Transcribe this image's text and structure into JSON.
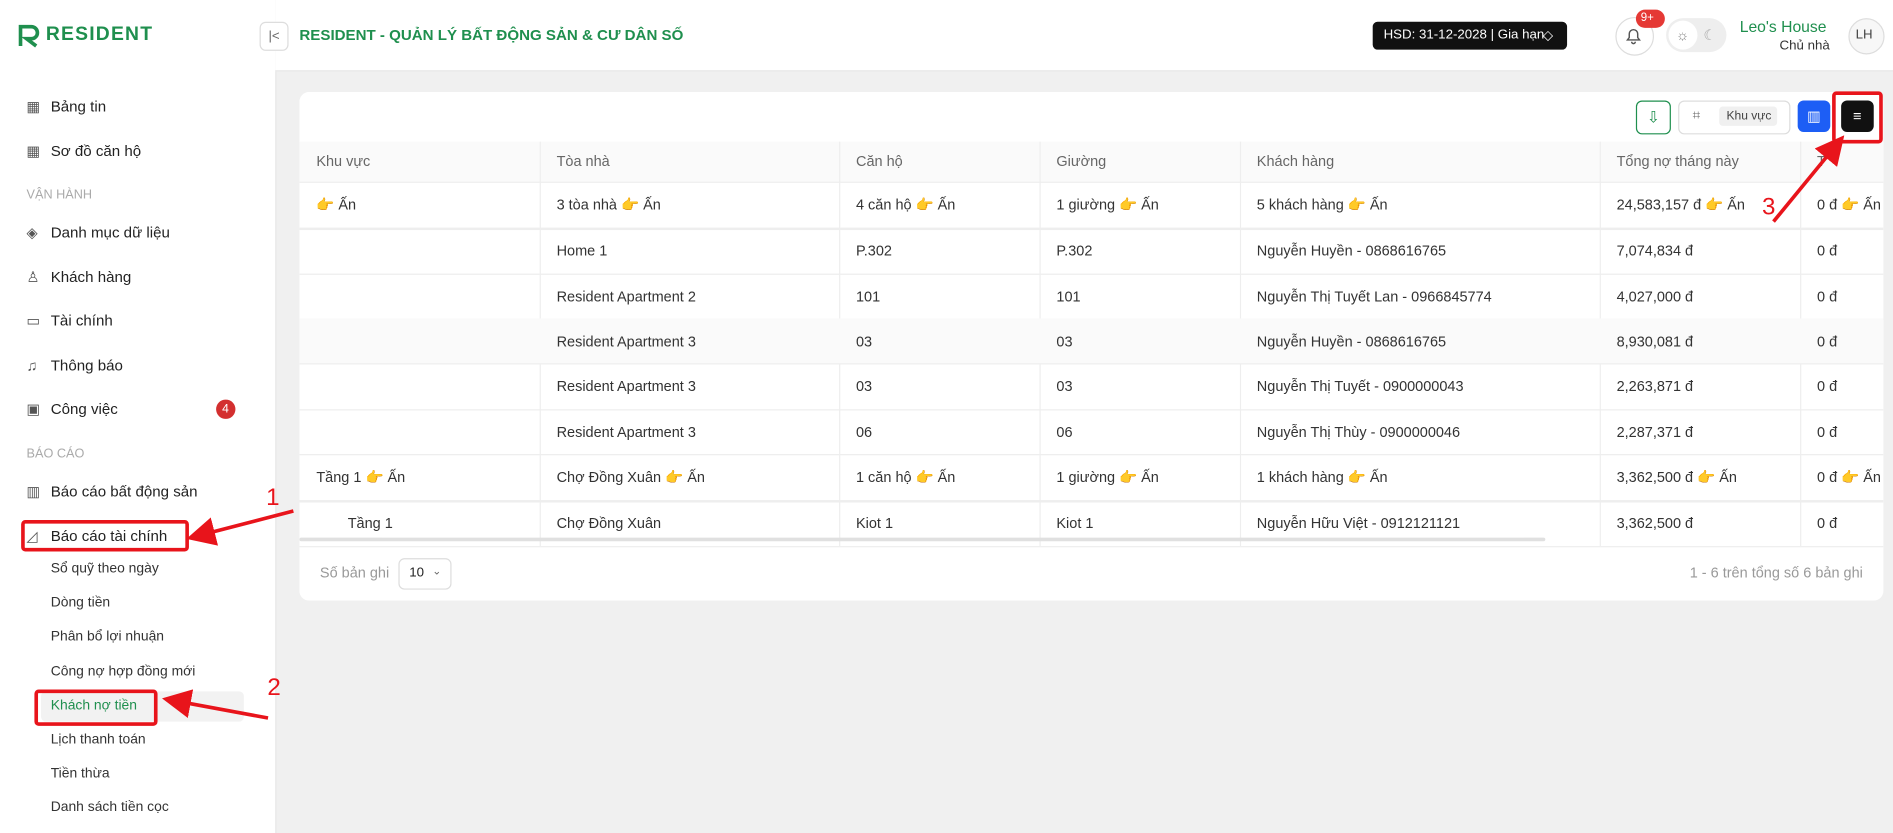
{
  "header": {
    "logo": "RESIDENT",
    "title": "RESIDENT - QUẢN LÝ BẤT ĐỘNG SẢN & CƯ DÂN SỐ",
    "license": "HSD: 31-12-2028 | Gia hạn",
    "notifications": "9+",
    "user_name": "Leo's House",
    "user_role": "Chủ nhà",
    "avatar": "LH"
  },
  "sidebar": {
    "top": [
      {
        "label": "Bảng tin"
      },
      {
        "label": "Sơ đồ căn hộ"
      }
    ],
    "sections": [
      {
        "title": "VẬN HÀNH",
        "items": [
          {
            "label": "Danh mục dữ liệu"
          },
          {
            "label": "Khách hàng"
          },
          {
            "label": "Tài chính"
          },
          {
            "label": "Thông báo"
          },
          {
            "label": "Công việc",
            "badge": "4"
          }
        ]
      },
      {
        "title": "BÁO CÁO",
        "items": [
          {
            "label": "Báo cáo bất động sản"
          },
          {
            "label": "Báo cáo tài chính",
            "children": [
              {
                "label": "Sổ quỹ theo ngày"
              },
              {
                "label": "Dòng tiền"
              },
              {
                "label": "Phân bổ lợi nhuận"
              },
              {
                "label": "Công nợ hợp đồng mới"
              },
              {
                "label": "Khách nợ tiền",
                "active": true
              },
              {
                "label": "Lịch thanh toán"
              },
              {
                "label": "Tiền thừa"
              },
              {
                "label": "Danh sách tiền cọc"
              }
            ]
          }
        ]
      }
    ]
  },
  "toolbar": {
    "area_tag": "Khu vực"
  },
  "table": {
    "columns": [
      "Khu vực",
      "Tòa nhà",
      "Căn hộ",
      "Giường",
      "Khách hàng",
      "Tổng nợ tháng này",
      "T"
    ],
    "rows": [
      [
        "👉 Ấn",
        "3 tòa nhà 👉 Ấn",
        "4 căn hộ 👉 Ấn",
        "1 giường 👉 Ấn",
        "5 khách hàng 👉 Ấn",
        "24,583,157 đ 👉 Ấn",
        "0 đ 👉 Ấn"
      ],
      [
        "",
        "Home 1",
        "P.302",
        "P.302",
        "Nguyễn Huyền - 0868616765",
        "7,074,834 đ",
        "0 đ"
      ],
      [
        "",
        "Resident Apartment 2",
        "101",
        "101",
        "Nguyễn Thị Tuyết Lan - 0966845774",
        "4,027,000 đ",
        "0 đ"
      ],
      [
        "",
        "Resident Apartment 3",
        "03",
        "03",
        "Nguyễn Huyền - 0868616765",
        "8,930,081 đ",
        "0 đ"
      ],
      [
        "",
        "Resident Apartment 3",
        "03",
        "03",
        "Nguyễn Thị Tuyết - 0900000043",
        "2,263,871 đ",
        "0 đ"
      ],
      [
        "",
        "Resident Apartment 3",
        "06",
        "06",
        "Nguyễn Thị Thùy - 0900000046",
        "2,287,371 đ",
        "0 đ"
      ],
      [
        "Tầng 1 👉 Ấn",
        "Chợ Đồng Xuân 👉 Ấn",
        "1 căn hộ 👉 Ấn",
        "1 giường 👉 Ấn",
        "1 khách hàng 👉 Ấn",
        "3,362,500 đ 👉 Ấn",
        "0 đ 👉 Ấn"
      ],
      [
        "Tầng 1",
        "Chợ Đồng Xuân",
        "Kiot 1",
        "Kiot 1",
        "Nguyễn Hữu Việt - 0912121121",
        "3,362,500 đ",
        "0 đ"
      ]
    ]
  },
  "footer": {
    "page_size_label": "Số bản ghi",
    "page_size": "10",
    "summary": "1 - 6 trên tổng số 6 bản ghi"
  },
  "annotations": [
    "1",
    "2",
    "3"
  ]
}
